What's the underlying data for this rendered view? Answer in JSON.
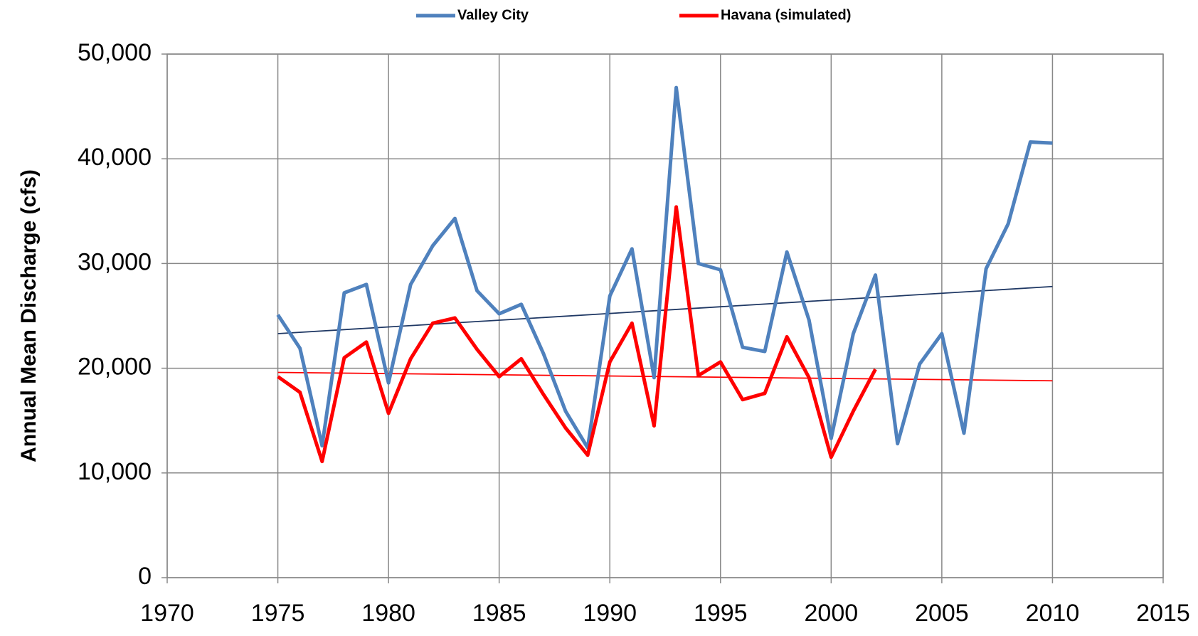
{
  "chart_data": {
    "type": "line",
    "y_label": "Annual Mean Discharge (cfs)",
    "x": [
      1975,
      1976,
      1977,
      1978,
      1979,
      1980,
      1981,
      1982,
      1983,
      1984,
      1985,
      1986,
      1987,
      1988,
      1989,
      1990,
      1991,
      1992,
      1993,
      1994,
      1995,
      1996,
      1997,
      1998,
      1999,
      2000,
      2001,
      2002,
      2003,
      2004,
      2005,
      2006,
      2007,
      2008,
      2009,
      2010
    ],
    "series": [
      {
        "name": "Valley City",
        "color": "#4f81bd",
        "values": [
          25100,
          21900,
          12600,
          27200,
          28000,
          18600,
          28000,
          31700,
          34300,
          27400,
          25200,
          26100,
          21400,
          15900,
          12400,
          26900,
          31400,
          19100,
          46800,
          30000,
          29400,
          22000,
          21600,
          31100,
          24600,
          13300,
          23300,
          28900,
          12800,
          20400,
          23300,
          13800,
          29500,
          33800,
          41600,
          41500
        ],
        "trend": {
          "color": "#1f3864",
          "x": [
            1975,
            2010
          ],
          "values": [
            23300,
            27800
          ]
        }
      },
      {
        "name": "Havana (simulated)",
        "color": "#ff0000",
        "values": [
          19200,
          17700,
          11100,
          21000,
          22500,
          15700,
          20900,
          24300,
          24800,
          21800,
          19200,
          20900,
          17500,
          14300,
          11700,
          20600,
          24300,
          14500,
          35400,
          19300,
          20600,
          17000,
          17600,
          23000,
          19100,
          11500,
          15900,
          19900,
          null,
          null,
          null,
          null,
          null,
          null,
          null,
          null
        ],
        "trend": {
          "color": "#ff0000",
          "x": [
            1975,
            2010
          ],
          "values": [
            19600,
            18800
          ]
        }
      }
    ],
    "xlim": [
      1970,
      2015
    ],
    "xticks": [
      1970,
      1975,
      1980,
      1985,
      1990,
      1995,
      2000,
      2005,
      2010,
      2015
    ],
    "ylim": [
      0,
      50000
    ],
    "yticks": [
      0,
      {
        "value": 10000,
        "label": "10,000"
      },
      {
        "value": 20000,
        "label": "20,000"
      },
      {
        "value": 30000,
        "label": "30,000"
      },
      {
        "value": 40000,
        "label": "40,000"
      },
      {
        "value": 50000,
        "label": "50,000"
      }
    ],
    "grid": true,
    "legend": "top"
  }
}
